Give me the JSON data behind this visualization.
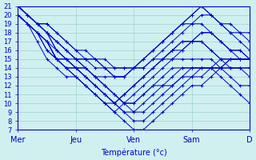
{
  "xlabel": "Température (°c)",
  "xtick_labels": [
    "Mer",
    "Jeu",
    "Ven",
    "Sam",
    "D"
  ],
  "xtick_positions": [
    0,
    24,
    48,
    72,
    96
  ],
  "ylim": [
    7,
    21
  ],
  "xlim": [
    0,
    96
  ],
  "ytick_min": 7,
  "ytick_max": 21,
  "bg_color": "#d0f0f0",
  "grid_color": "#a0d0d0",
  "line_color": "#0000cc",
  "marker": "+",
  "series": [
    [
      20,
      19,
      17,
      15,
      14,
      13,
      13,
      12,
      11,
      10,
      10,
      11,
      12,
      13,
      14,
      15,
      16,
      17,
      17,
      17,
      16,
      15,
      15,
      15,
      15
    ],
    [
      21,
      20,
      19,
      18,
      16,
      15,
      15,
      14,
      13,
      13,
      13,
      13,
      14,
      15,
      16,
      17,
      18,
      19,
      20,
      21,
      20,
      19,
      19,
      18,
      18
    ],
    [
      20,
      19,
      18,
      17,
      15,
      15,
      14,
      13,
      12,
      11,
      10,
      11,
      12,
      13,
      14,
      15,
      16,
      16,
      17,
      17,
      16,
      15,
      14,
      14,
      13
    ],
    [
      20,
      19,
      18,
      17,
      15,
      14,
      14,
      13,
      12,
      11,
      10,
      11,
      12,
      13,
      14,
      15,
      15,
      15,
      15,
      15,
      15,
      14,
      14,
      14,
      14
    ],
    [
      21,
      20,
      19,
      18,
      16,
      15,
      14,
      14,
      13,
      12,
      11,
      10,
      10,
      11,
      12,
      12,
      13,
      14,
      14,
      14,
      14,
      13,
      12,
      11,
      10
    ],
    [
      20,
      19,
      18,
      16,
      15,
      14,
      13,
      12,
      11,
      10,
      9,
      10,
      11,
      12,
      13,
      14,
      15,
      16,
      17,
      18,
      18,
      17,
      16,
      15,
      15
    ],
    [
      21,
      20,
      19,
      19,
      18,
      17,
      16,
      15,
      15,
      14,
      13,
      13,
      14,
      15,
      16,
      17,
      18,
      19,
      20,
      21,
      20,
      19,
      18,
      17,
      16
    ],
    [
      20,
      19,
      18,
      17,
      16,
      15,
      14,
      13,
      12,
      11,
      10,
      9,
      8,
      8,
      9,
      10,
      11,
      12,
      13,
      13,
      14,
      15,
      15,
      15,
      15
    ],
    [
      21,
      20,
      19,
      18,
      17,
      16,
      15,
      15,
      14,
      14,
      13,
      13,
      14,
      15,
      16,
      17,
      18,
      19,
      19,
      19,
      18,
      17,
      16,
      16,
      15
    ],
    [
      20,
      19,
      18,
      17,
      15,
      14,
      14,
      13,
      12,
      11,
      10,
      9,
      9,
      10,
      11,
      12,
      12,
      13,
      14,
      14,
      14,
      14,
      13,
      12,
      12
    ],
    [
      21,
      20,
      19,
      18,
      17,
      16,
      15,
      15,
      15,
      14,
      14,
      14,
      14,
      14,
      15,
      16,
      17,
      18,
      19,
      20,
      20,
      19,
      18,
      18,
      17
    ],
    [
      20,
      19,
      18,
      17,
      15,
      15,
      14,
      14,
      13,
      12,
      11,
      10,
      10,
      11,
      12,
      13,
      14,
      14,
      14,
      14,
      14,
      14,
      15,
      15,
      15
    ],
    [
      21,
      20,
      19,
      18,
      17,
      16,
      15,
      14,
      13,
      12,
      11,
      10,
      9,
      9,
      10,
      11,
      12,
      13,
      13,
      14,
      14,
      14,
      15,
      15,
      15
    ],
    [
      20,
      19,
      18,
      16,
      15,
      14,
      13,
      12,
      11,
      10,
      9,
      8,
      7,
      7,
      8,
      9,
      10,
      11,
      12,
      12,
      13,
      14,
      14,
      14,
      14
    ],
    [
      21,
      20,
      19,
      19,
      18,
      17,
      16,
      16,
      15,
      15,
      14,
      14,
      14,
      14,
      15,
      15,
      16,
      17,
      17,
      18,
      18,
      17,
      16,
      16,
      15
    ]
  ]
}
